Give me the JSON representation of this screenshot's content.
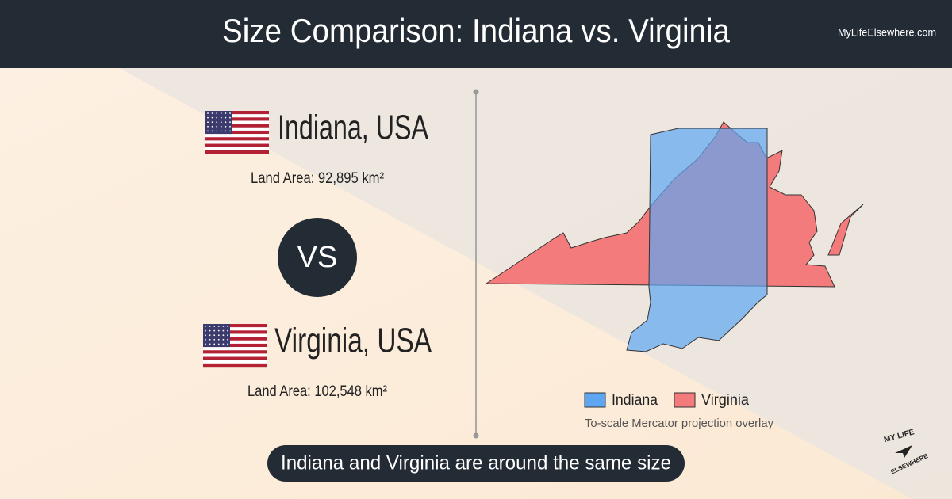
{
  "header": {
    "title": "Size Comparison: Indiana vs. Virginia",
    "site": "MyLifeElsewhere.com"
  },
  "places": [
    {
      "name": "Indiana, USA",
      "land_area": "Land Area: 92,895 km²"
    },
    {
      "name": "Virginia, USA",
      "land_area": "Land Area: 102,548 km²"
    }
  ],
  "vs": "VS",
  "legend": [
    {
      "label": "Indiana",
      "color": "#5ea6f2"
    },
    {
      "label": "Virginia",
      "color": "#f47b7b"
    }
  ],
  "map_note": "To-scale Mercator projection overlay",
  "conclusion": "Indiana and Virginia are around the same size",
  "logo": {
    "top": "MY LIFE",
    "bottom": "ELSEWHERE"
  }
}
